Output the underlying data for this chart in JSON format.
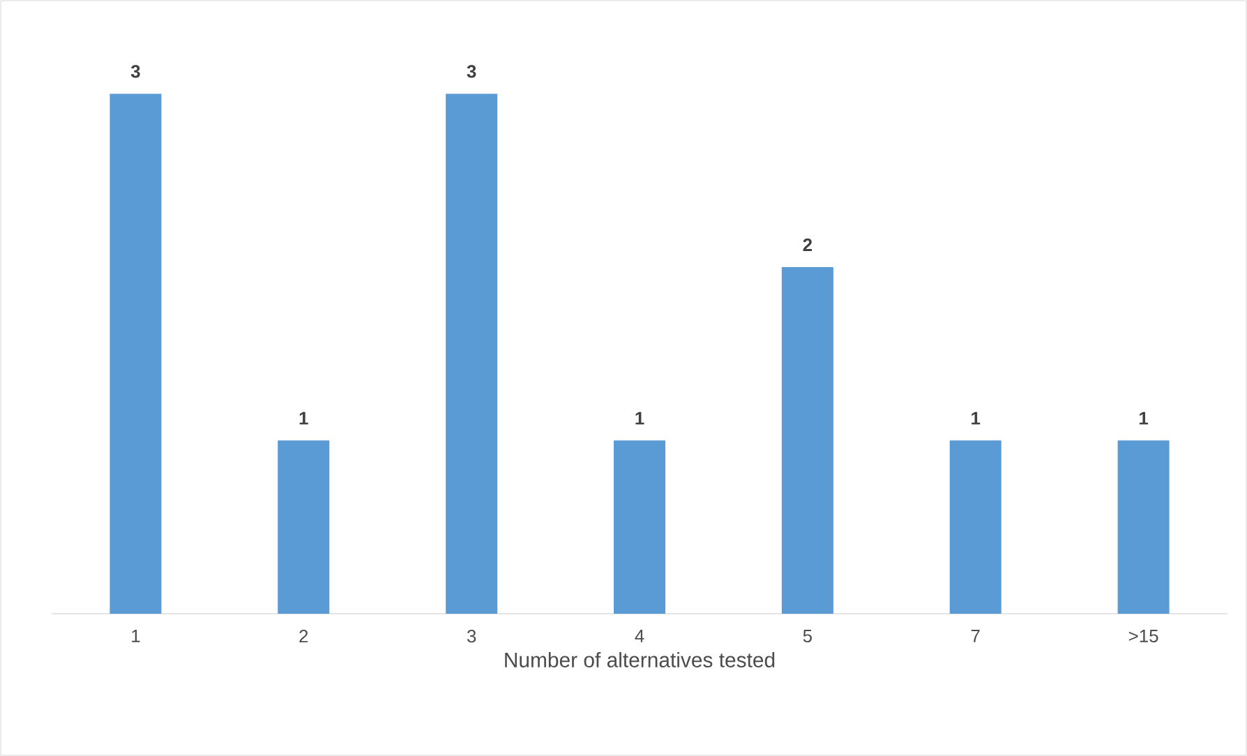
{
  "chart_data": {
    "type": "bar",
    "xlabel": "Number of alternatives tested",
    "categories": [
      "1",
      "2",
      "3",
      "4",
      "5",
      "7",
      ">15"
    ],
    "values": [
      3,
      1,
      3,
      1,
      2,
      1,
      1
    ],
    "color": "#5b9bd5",
    "data_labels": true,
    "tick_labels": "x"
  }
}
